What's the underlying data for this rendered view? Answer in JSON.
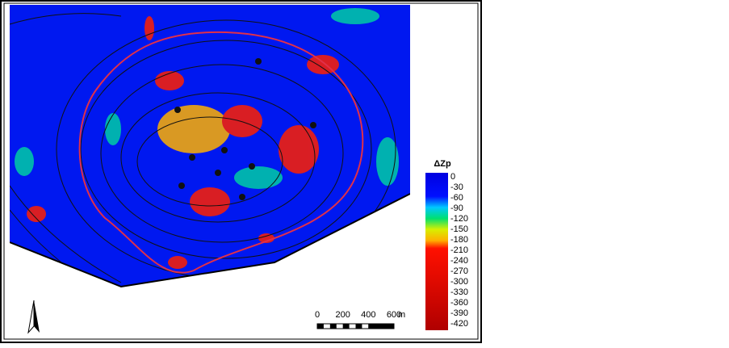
{
  "legend": {
    "title": "ΔZp",
    "ticks": [
      0,
      -30,
      -60,
      -90,
      -120,
      -150,
      -180,
      -210,
      -240,
      -270,
      -300,
      -330,
      -360,
      -390,
      -420
    ]
  },
  "scale_bar": {
    "ticks": [
      0,
      200,
      400,
      600
    ],
    "unit": "m"
  }
}
